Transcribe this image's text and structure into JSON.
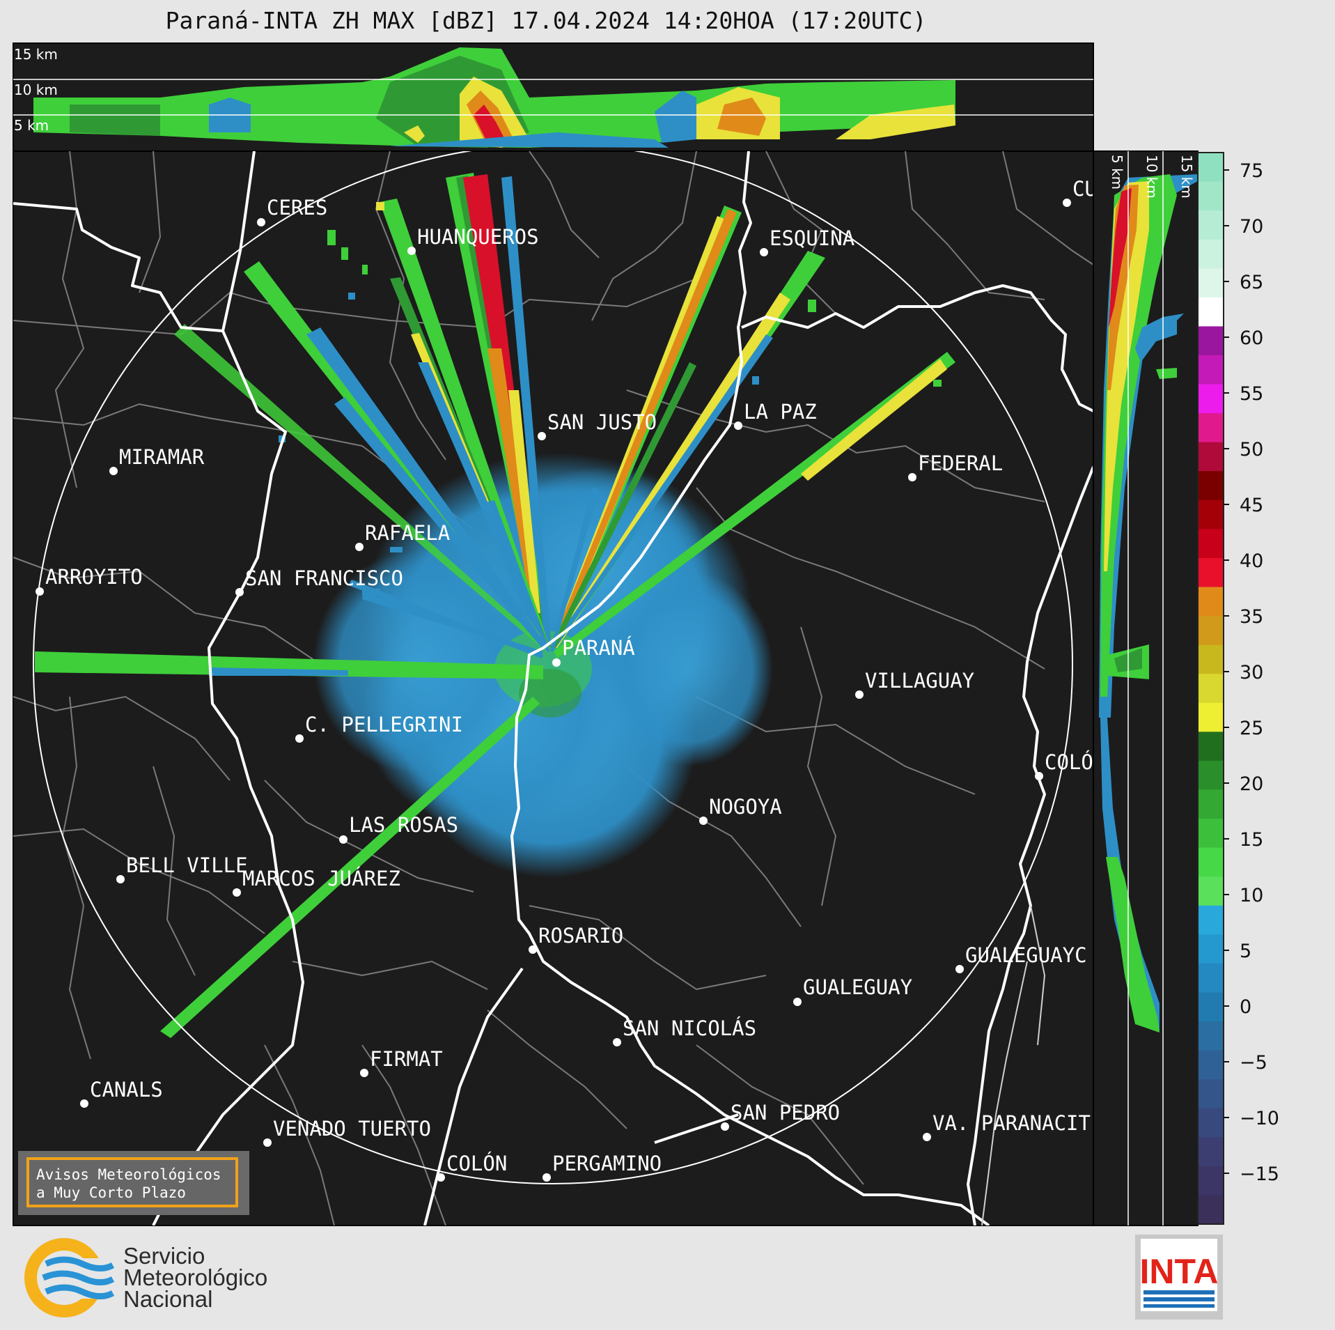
{
  "title": "Paraná-INTA ZH MAX [dBZ] 17.04.2024 14:20HOA (17:20UTC)",
  "top_section": {
    "levels": [
      "15 km",
      "10 km",
      "5 km"
    ]
  },
  "side_section": {
    "levels": [
      "5 km",
      "10 km",
      "15 km"
    ]
  },
  "colorbar": {
    "unit": "dBZ",
    "ticks": [
      "75",
      "70",
      "65",
      "60",
      "55",
      "50",
      "45",
      "40",
      "35",
      "30",
      "25",
      "20",
      "15",
      "10",
      "5",
      "0",
      "−5",
      "−10",
      "−15"
    ]
  },
  "cities": [
    {
      "name": "CERES"
    },
    {
      "name": "HUANQUEROS"
    },
    {
      "name": "ESQUINA"
    },
    {
      "name": "CU"
    },
    {
      "name": "LA PAZ"
    },
    {
      "name": "SAN JUSTO"
    },
    {
      "name": "MIRAMAR"
    },
    {
      "name": "FEDERAL"
    },
    {
      "name": "RAFAELA"
    },
    {
      "name": "ARROYITO"
    },
    {
      "name": "SAN FRANCISCO"
    },
    {
      "name": "PARANÁ"
    },
    {
      "name": "VILLAGUAY"
    },
    {
      "name": "C. PELLEGRINI"
    },
    {
      "name": "COLÓ"
    },
    {
      "name": "NOGOYA"
    },
    {
      "name": "LAS ROSAS"
    },
    {
      "name": "BELL VILLE"
    },
    {
      "name": "MARCOS JUÁREZ"
    },
    {
      "name": "ROSARIO"
    },
    {
      "name": "GUALEGUAYC"
    },
    {
      "name": "GUALEGUAY"
    },
    {
      "name": "SAN NICOLÁS"
    },
    {
      "name": "FIRMAT"
    },
    {
      "name": "CANALS"
    },
    {
      "name": "SAN PEDRO"
    },
    {
      "name": "VENADO TUERTO"
    },
    {
      "name": "VA. PARANACIT"
    },
    {
      "name": "COLÓN"
    },
    {
      "name": "PERGAMINO"
    }
  ],
  "notice": {
    "line1": "Avisos Meteorológicos",
    "line2": "a Muy Corto Plazo"
  },
  "logos": {
    "smn": {
      "line1": "Servicio",
      "line2": "Meteorológico",
      "line3": "Nacional"
    },
    "inta": {
      "text": "INTA"
    }
  },
  "colors": {
    "map_background": "#1c1c1c",
    "range_ring": "#ffffff",
    "echo_blue": "#2e8fc6",
    "echo_green": "#3fcf3a",
    "echo_yellow": "#e8e23a",
    "echo_red": "#d8102a",
    "inta_red": "#e2231a"
  }
}
